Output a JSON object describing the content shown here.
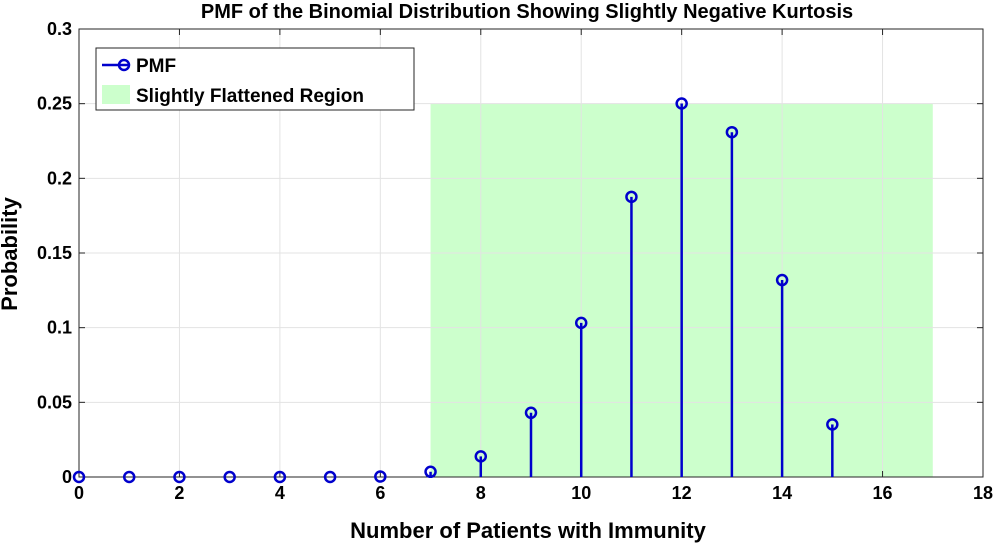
{
  "chart_data": {
    "type": "stem",
    "title": "PMF of the Binomial Distribution Showing Slightly Negative Kurtosis",
    "xlabel": "Number of Patients with Immunity",
    "ylabel": "Probability",
    "xlim": [
      0,
      18
    ],
    "ylim": [
      0,
      0.3
    ],
    "xticks": [
      0,
      2,
      4,
      6,
      8,
      10,
      12,
      14,
      16,
      18
    ],
    "yticks": [
      0,
      0.05,
      0.1,
      0.15,
      0.2,
      0.25,
      0.3
    ],
    "xtick_labels": [
      "0",
      "2",
      "4",
      "6",
      "8",
      "10",
      "12",
      "14",
      "16",
      "18"
    ],
    "ytick_labels": [
      "0",
      "0.05",
      "0.1",
      "0.15",
      "0.2",
      "0.25",
      "0.3"
    ],
    "grid": true,
    "legend_position": "top-left",
    "series": [
      {
        "name": "PMF",
        "color": "#0000cc",
        "x": [
          0,
          1,
          2,
          3,
          4,
          5,
          6,
          7,
          8,
          9,
          10,
          11,
          12,
          13,
          14,
          15
        ],
        "values": [
          0,
          0,
          0,
          0,
          0,
          0,
          0.0003,
          0.0035,
          0.0138,
          0.043,
          0.1032,
          0.1876,
          0.2501,
          0.2309,
          0.1319,
          0.0352
        ]
      }
    ],
    "region": {
      "name": "Slightly Flattened Region",
      "color": "#ccffcc",
      "x_range": [
        7,
        17
      ],
      "y_top": 0.25
    }
  }
}
